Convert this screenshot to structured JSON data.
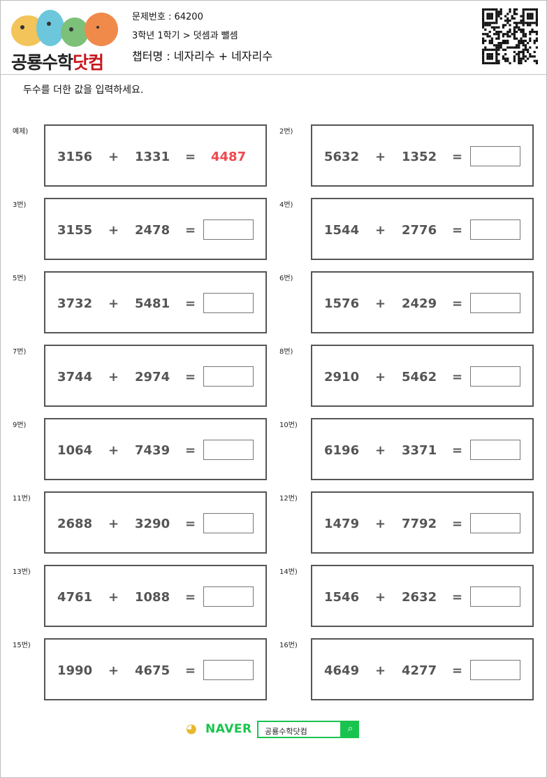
{
  "header": {
    "logo_text_black": "공룡수학",
    "logo_text_red": "닷컴",
    "problem_no": "문제번호 : 64200",
    "path": "3학년 1학기 > 덧셈과 뺄셈",
    "chapter": "챕터명 : 네자리수 + 네자리수"
  },
  "instruction": "두수를 더한 값을 입력하세요.",
  "problems": [
    {
      "label": "예제)",
      "a": "3156",
      "op": "+",
      "b": "1331",
      "eq": "=",
      "answer": "4487"
    },
    {
      "label": "2번)",
      "a": "5632",
      "op": "+",
      "b": "1352",
      "eq": "=",
      "answer": ""
    },
    {
      "label": "3번)",
      "a": "3155",
      "op": "+",
      "b": "2478",
      "eq": "=",
      "answer": ""
    },
    {
      "label": "4번)",
      "a": "1544",
      "op": "+",
      "b": "2776",
      "eq": "=",
      "answer": ""
    },
    {
      "label": "5번)",
      "a": "3732",
      "op": "+",
      "b": "5481",
      "eq": "=",
      "answer": ""
    },
    {
      "label": "6번)",
      "a": "1576",
      "op": "+",
      "b": "2429",
      "eq": "=",
      "answer": ""
    },
    {
      "label": "7번)",
      "a": "3744",
      "op": "+",
      "b": "2974",
      "eq": "=",
      "answer": ""
    },
    {
      "label": "8번)",
      "a": "2910",
      "op": "+",
      "b": "5462",
      "eq": "=",
      "answer": ""
    },
    {
      "label": "9번)",
      "a": "1064",
      "op": "+",
      "b": "7439",
      "eq": "=",
      "answer": ""
    },
    {
      "label": "10번)",
      "a": "6196",
      "op": "+",
      "b": "3371",
      "eq": "=",
      "answer": ""
    },
    {
      "label": "11번)",
      "a": "2688",
      "op": "+",
      "b": "3290",
      "eq": "=",
      "answer": ""
    },
    {
      "label": "12번)",
      "a": "1479",
      "op": "+",
      "b": "7792",
      "eq": "=",
      "answer": ""
    },
    {
      "label": "13번)",
      "a": "4761",
      "op": "+",
      "b": "1088",
      "eq": "=",
      "answer": ""
    },
    {
      "label": "14번)",
      "a": "1546",
      "op": "+",
      "b": "2632",
      "eq": "=",
      "answer": ""
    },
    {
      "label": "15번)",
      "a": "1990",
      "op": "+",
      "b": "4675",
      "eq": "=",
      "answer": ""
    },
    {
      "label": "16번)",
      "a": "4649",
      "op": "+",
      "b": "4277",
      "eq": "=",
      "answer": ""
    }
  ],
  "naver": {
    "brand": "NAVER",
    "query": "공룡수학닷컴",
    "search_icon": "magnifier-icon"
  },
  "colors": {
    "answer": "#f0484f",
    "naver_green": "#19c44e",
    "logo_red": "#c8151b"
  }
}
